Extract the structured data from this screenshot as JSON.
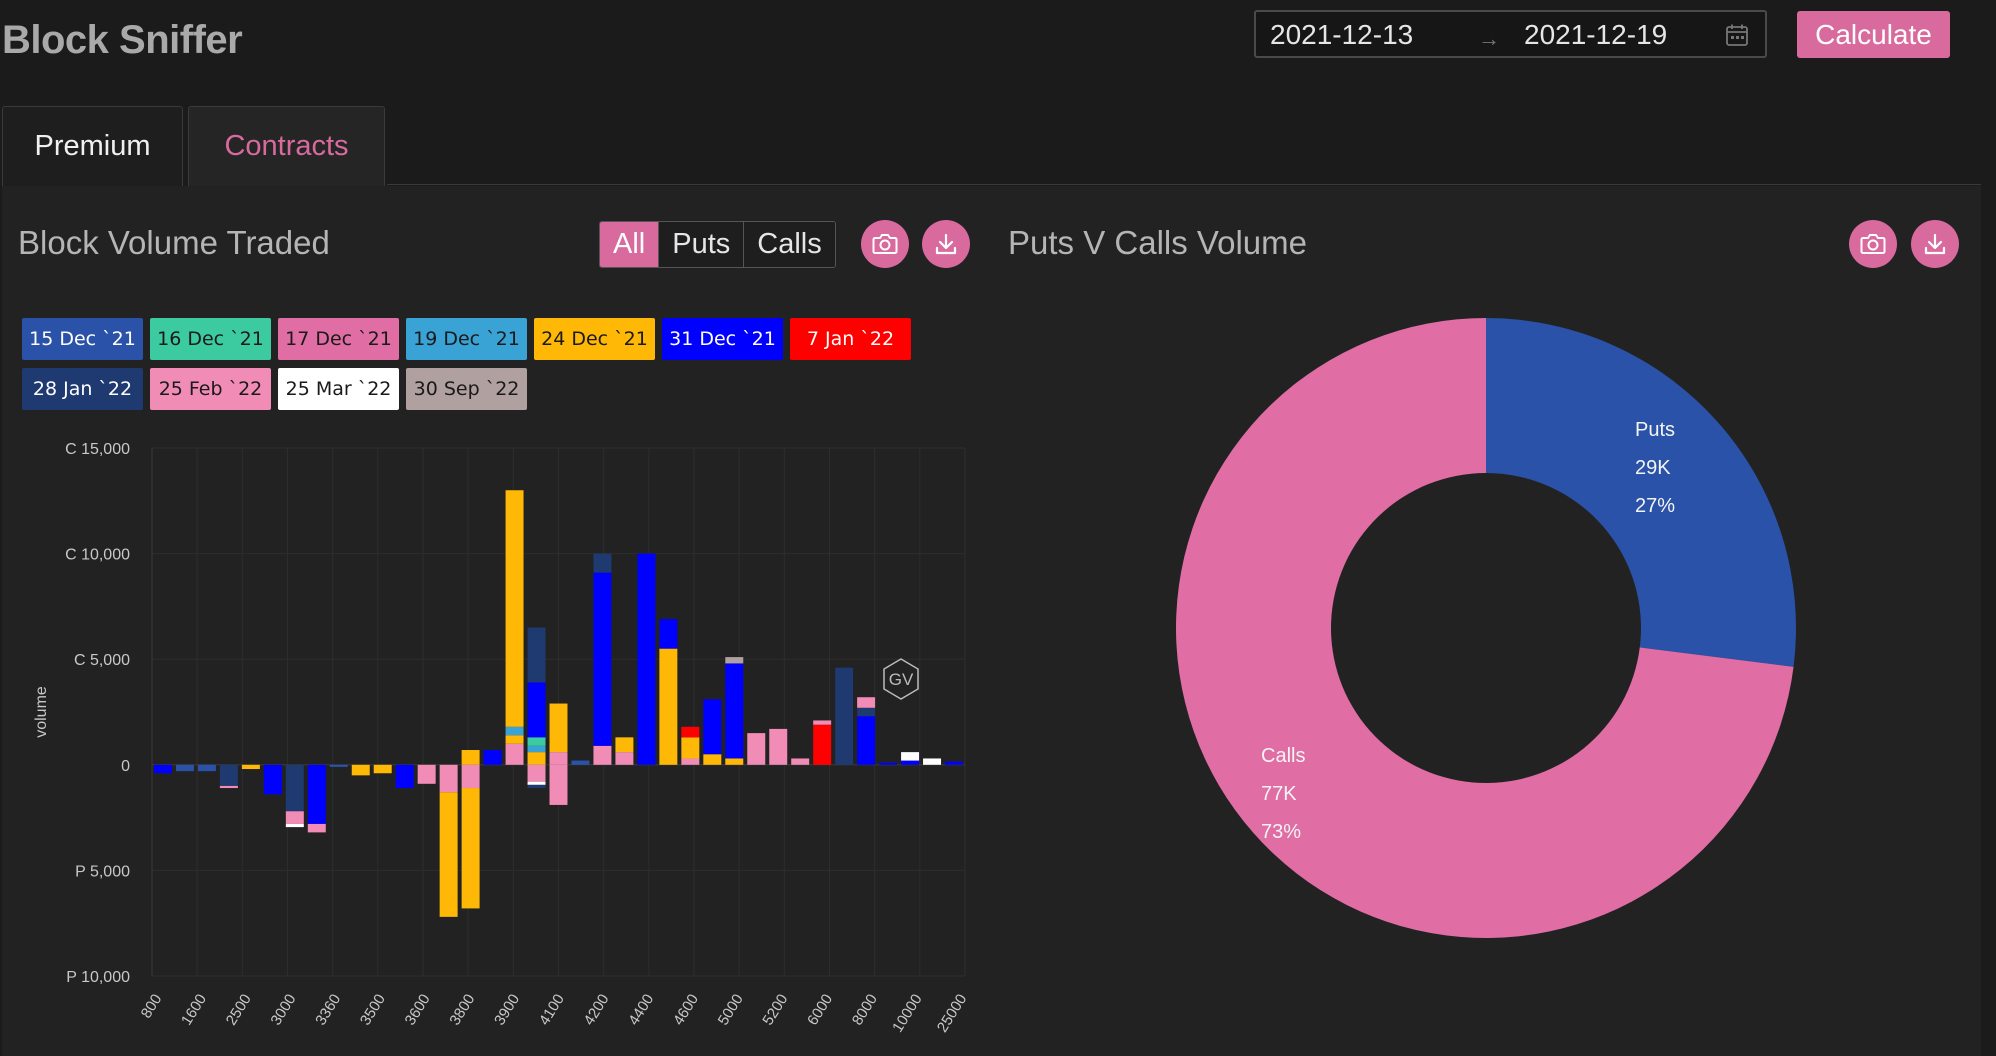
{
  "app": {
    "title": "Block Sniffer"
  },
  "date_range": {
    "start": "2021-12-13",
    "end": "2021-12-19",
    "separator": "→"
  },
  "calculate_label": "Calculate",
  "tabs": [
    {
      "label": "Premium",
      "active": false
    },
    {
      "label": "Contracts",
      "active": true
    }
  ],
  "colors": {
    "accent": "#d96a9e",
    "puts": "#2a52a8",
    "calls": "#e06da3"
  },
  "left_panel": {
    "title": "Block Volume Traded",
    "filters": [
      {
        "label": "All",
        "active": true
      },
      {
        "label": "Puts",
        "active": false
      },
      {
        "label": "Calls",
        "active": false
      }
    ],
    "icons": [
      "camera-icon",
      "download-icon"
    ]
  },
  "right_panel": {
    "title": "Puts V Calls Volume",
    "icons": [
      "camera-icon",
      "download-icon"
    ]
  },
  "chart_data": [
    {
      "type": "bar",
      "stacked": true,
      "ylabel": "volume",
      "ylim": [
        -10000,
        15000
      ],
      "y_ticks": [
        {
          "v": 15000,
          "label": "C 15,000"
        },
        {
          "v": 10000,
          "label": "C 10,000"
        },
        {
          "v": 5000,
          "label": "C 5,000"
        },
        {
          "v": 0,
          "label": "0"
        },
        {
          "v": -5000,
          "label": "P 5,000"
        },
        {
          "v": -10000,
          "label": "P 10,000"
        }
      ],
      "x_tick_labels": [
        "800",
        "1600",
        "2500",
        "3000",
        "3360",
        "3500",
        "3600",
        "3800",
        "3900",
        "4100",
        "4200",
        "4400",
        "4600",
        "5000",
        "5200",
        "6000",
        "8000",
        "10000",
        "25000"
      ],
      "watermark": "GV",
      "legend_placement": "top",
      "series": [
        {
          "name": "15 Dec `21",
          "color": "#2a52a8",
          "text_color": "#ffffff"
        },
        {
          "name": "16 Dec `21",
          "color": "#3ccba0",
          "text_color": "#1a1a1a"
        },
        {
          "name": "17 Dec `21",
          "color": "#e06da3",
          "text_color": "#1a1a1a"
        },
        {
          "name": "19 Dec `21",
          "color": "#3aa3d6",
          "text_color": "#1a1a1a"
        },
        {
          "name": "24 Dec `21",
          "color": "#ffb806",
          "text_color": "#1a1a1a"
        },
        {
          "name": "31 Dec `21",
          "color": "#0000ff",
          "text_color": "#ffffff"
        },
        {
          "name": "7 Jan `22",
          "color": "#ff0000",
          "text_color": "#ffffff"
        },
        {
          "name": "28 Jan `22",
          "color": "#1e3a70",
          "text_color": "#ffffff"
        },
        {
          "name": "25 Feb `22",
          "color": "#f08cb6",
          "text_color": "#1a1a1a"
        },
        {
          "name": "25 Mar `22",
          "color": "#ffffff",
          "text_color": "#1a1a1a"
        },
        {
          "name": "30 Sep `22",
          "color": "#b0a0a0",
          "text_color": "#1a1a1a"
        }
      ],
      "bars": [
        {
          "calls": [],
          "puts": [
            [
              5,
              400
            ]
          ]
        },
        {
          "calls": [],
          "puts": [
            [
              0,
              300
            ]
          ]
        },
        {
          "calls": [],
          "puts": [
            [
              0,
              300
            ]
          ]
        },
        {
          "calls": [],
          "puts": [
            [
              7,
              1000
            ],
            [
              8,
              100
            ]
          ]
        },
        {
          "calls": [],
          "puts": [
            [
              4,
              200
            ]
          ]
        },
        {
          "calls": [],
          "puts": [
            [
              5,
              1400
            ]
          ]
        },
        {
          "calls": [],
          "puts": [
            [
              7,
              2200
            ],
            [
              8,
              600
            ],
            [
              9,
              150
            ]
          ]
        },
        {
          "calls": [],
          "puts": [
            [
              5,
              2800
            ],
            [
              8,
              400
            ]
          ]
        },
        {
          "calls": [],
          "puts": [
            [
              0,
              100
            ]
          ]
        },
        {
          "calls": [],
          "puts": [
            [
              4,
              500
            ]
          ]
        },
        {
          "calls": [],
          "puts": [
            [
              4,
              400
            ]
          ]
        },
        {
          "calls": [],
          "puts": [
            [
              5,
              1100
            ]
          ]
        },
        {
          "calls": [],
          "puts": [
            [
              8,
              900
            ]
          ]
        },
        {
          "calls": [],
          "puts": [
            [
              8,
              1300
            ],
            [
              4,
              5900
            ]
          ]
        },
        {
          "calls": [
            [
              4,
              700
            ]
          ],
          "puts": [
            [
              8,
              1100
            ],
            [
              4,
              5700
            ]
          ]
        },
        {
          "calls": [
            [
              5,
              700
            ]
          ],
          "puts": []
        },
        {
          "calls": [
            [
              8,
              1000
            ],
            [
              4,
              400
            ],
            [
              3,
              400
            ],
            [
              4,
              11200
            ]
          ],
          "puts": []
        },
        {
          "calls": [
            [
              4,
              600
            ],
            [
              3,
              300
            ],
            [
              1,
              400
            ],
            [
              5,
              2600
            ],
            [
              7,
              2600
            ]
          ],
          "puts": [
            [
              8,
              800
            ],
            [
              9,
              150
            ],
            [
              7,
              150
            ]
          ]
        },
        {
          "calls": [
            [
              8,
              600
            ],
            [
              4,
              2300
            ]
          ],
          "puts": [
            [
              8,
              1900
            ]
          ]
        },
        {
          "calls": [
            [
              0,
              200
            ]
          ],
          "puts": []
        },
        {
          "calls": [
            [
              8,
              900
            ],
            [
              5,
              8200
            ],
            [
              7,
              900
            ]
          ],
          "puts": []
        },
        {
          "calls": [
            [
              8,
              600
            ],
            [
              4,
              700
            ]
          ],
          "puts": []
        },
        {
          "calls": [
            [
              5,
              10000
            ]
          ],
          "puts": []
        },
        {
          "calls": [
            [
              4,
              5500
            ],
            [
              5,
              1400
            ]
          ],
          "puts": []
        },
        {
          "calls": [
            [
              8,
              300
            ],
            [
              4,
              1000
            ],
            [
              6,
              500
            ]
          ],
          "puts": []
        },
        {
          "calls": [
            [
              4,
              500
            ],
            [
              5,
              2600
            ]
          ],
          "puts": []
        },
        {
          "calls": [
            [
              4,
              300
            ],
            [
              5,
              4500
            ],
            [
              10,
              300
            ]
          ],
          "puts": []
        },
        {
          "calls": [
            [
              8,
              1500
            ]
          ],
          "puts": []
        },
        {
          "calls": [
            [
              8,
              1700
            ]
          ],
          "puts": []
        },
        {
          "calls": [
            [
              8,
              300
            ]
          ],
          "puts": []
        },
        {
          "calls": [
            [
              6,
              1900
            ],
            [
              8,
              200
            ]
          ],
          "puts": []
        },
        {
          "calls": [
            [
              7,
              4600
            ]
          ],
          "puts": []
        },
        {
          "calls": [
            [
              5,
              2300
            ],
            [
              7,
              400
            ],
            [
              8,
              500
            ]
          ],
          "puts": []
        },
        {
          "calls": [
            [
              5,
              100
            ]
          ],
          "puts": []
        },
        {
          "calls": [
            [
              5,
              200
            ],
            [
              9,
              400
            ]
          ],
          "puts": []
        },
        {
          "calls": [
            [
              9,
              300
            ]
          ],
          "puts": []
        },
        {
          "calls": [
            [
              5,
              150
            ]
          ],
          "puts": []
        }
      ]
    },
    {
      "type": "pie",
      "donut": true,
      "slices": [
        {
          "name": "Puts",
          "value_label": "29K",
          "percent_label": "27%",
          "percent": 27,
          "color": "#2a52a8"
        },
        {
          "name": "Calls",
          "value_label": "77K",
          "percent_label": "73%",
          "percent": 73,
          "color": "#e06da3"
        }
      ]
    }
  ]
}
